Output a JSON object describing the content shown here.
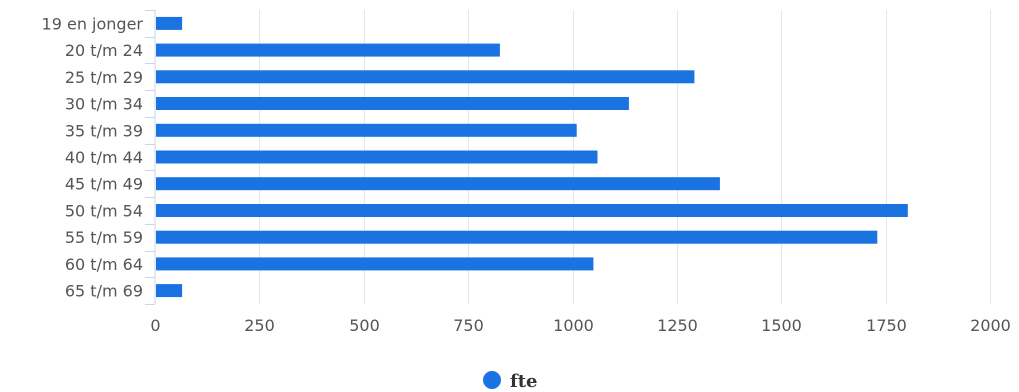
{
  "chart_data": {
    "type": "bar",
    "orientation": "horizontal",
    "categories": [
      "19 en jonger",
      "20 t/m 24",
      "25 t/m 29",
      "30 t/m 34",
      "35 t/m 39",
      "40 t/m 44",
      "45 t/m 49",
      "50 t/m 54",
      "55 t/m 59",
      "60 t/m 64",
      "65 t/m 69"
    ],
    "series": [
      {
        "name": "fte",
        "color": "#1a73e0",
        "values": [
          65,
          826,
          1292,
          1135,
          1010,
          1060,
          1353,
          1803,
          1730,
          1050,
          65
        ]
      }
    ],
    "xlim": [
      0,
      2000
    ],
    "xticks": [
      0,
      250,
      500,
      750,
      1000,
      1250,
      1500,
      1750,
      2000
    ],
    "grid": "vertical",
    "legend_position": "bottom-center"
  }
}
